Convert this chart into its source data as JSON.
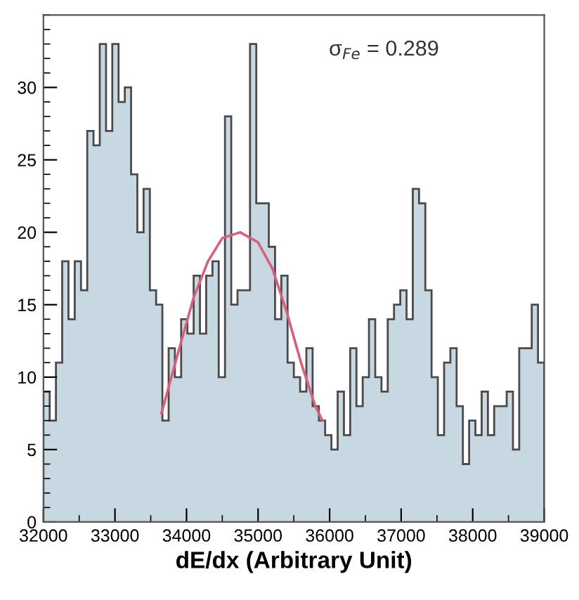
{
  "chart_data": {
    "type": "histogram",
    "xlabel": "dE/dx (Arbitrary Unit)",
    "bins": [
      32000,
      32087.5,
      32175,
      32262.5,
      32350,
      32437.5,
      32525,
      32612.5,
      32700,
      32787.5,
      32875,
      32962.5,
      33050,
      33137.5,
      33225,
      33312.5,
      33400,
      33487.5,
      33575,
      33662.5,
      33750,
      33837.5,
      33925,
      34012.5,
      34100,
      34187.5,
      34275,
      34362.5,
      34450,
      34537.5,
      34625,
      34712.5,
      34800,
      34887.5,
      34975,
      35062.5,
      35150,
      35237.5,
      35325,
      35412.5,
      35500,
      35587.5,
      35675,
      35762.5,
      35850,
      35937.5,
      36025,
      36112.5,
      36200,
      36287.5,
      36375,
      36462.5,
      36550,
      36637.5,
      36725,
      36812.5,
      36900,
      36987.5,
      37075,
      37162.5,
      37250,
      37337.5,
      37425,
      37512.5,
      37600,
      37687.5,
      37775,
      37862.5,
      37950,
      38037.5,
      38125,
      38212.5,
      38300,
      38387.5,
      38475,
      38562.5,
      38650,
      38737.5,
      38825,
      38912.5,
      39000
    ],
    "values": [
      9,
      7,
      11,
      18,
      14,
      18,
      16,
      27,
      26,
      33,
      27,
      33,
      29,
      30,
      24,
      20,
      23,
      16,
      15,
      7,
      12,
      10,
      14,
      13,
      17,
      13,
      17,
      18,
      10,
      28,
      15,
      16,
      16,
      33,
      22,
      22,
      19,
      14,
      17,
      11,
      10,
      9,
      12,
      8,
      7,
      6,
      5,
      9,
      6,
      12,
      8,
      10,
      14,
      10,
      9,
      14,
      15,
      16,
      14,
      23,
      22,
      16,
      10,
      6,
      11,
      12,
      8,
      4,
      7,
      6,
      9,
      6,
      8,
      8,
      9,
      5,
      12,
      12,
      15,
      11
    ],
    "color": "#c8d8e2",
    "series": [
      {
        "type": "line",
        "color": "#d9607a",
        "x": [
          33650,
          33900,
          34100,
          34300,
          34500,
          34750,
          35000,
          35200,
          35400,
          35600,
          35800,
          35900
        ],
        "values": [
          7.5,
          12,
          15.5,
          18,
          19.6,
          20,
          19.3,
          17.5,
          14.5,
          11,
          8,
          7
        ]
      }
    ],
    "annotations": [
      "σ$_{Fe}$ = 0.289"
    ],
    "xlim": [
      32000,
      39000
    ],
    "xticks": [
      32000,
      33000,
      34000,
      35000,
      36000,
      37000,
      38000,
      39000
    ],
    "ylim": [
      0,
      35
    ],
    "yticks": [
      0,
      5,
      10,
      15,
      20,
      25,
      30
    ],
    "grid": false,
    "legend": false
  }
}
